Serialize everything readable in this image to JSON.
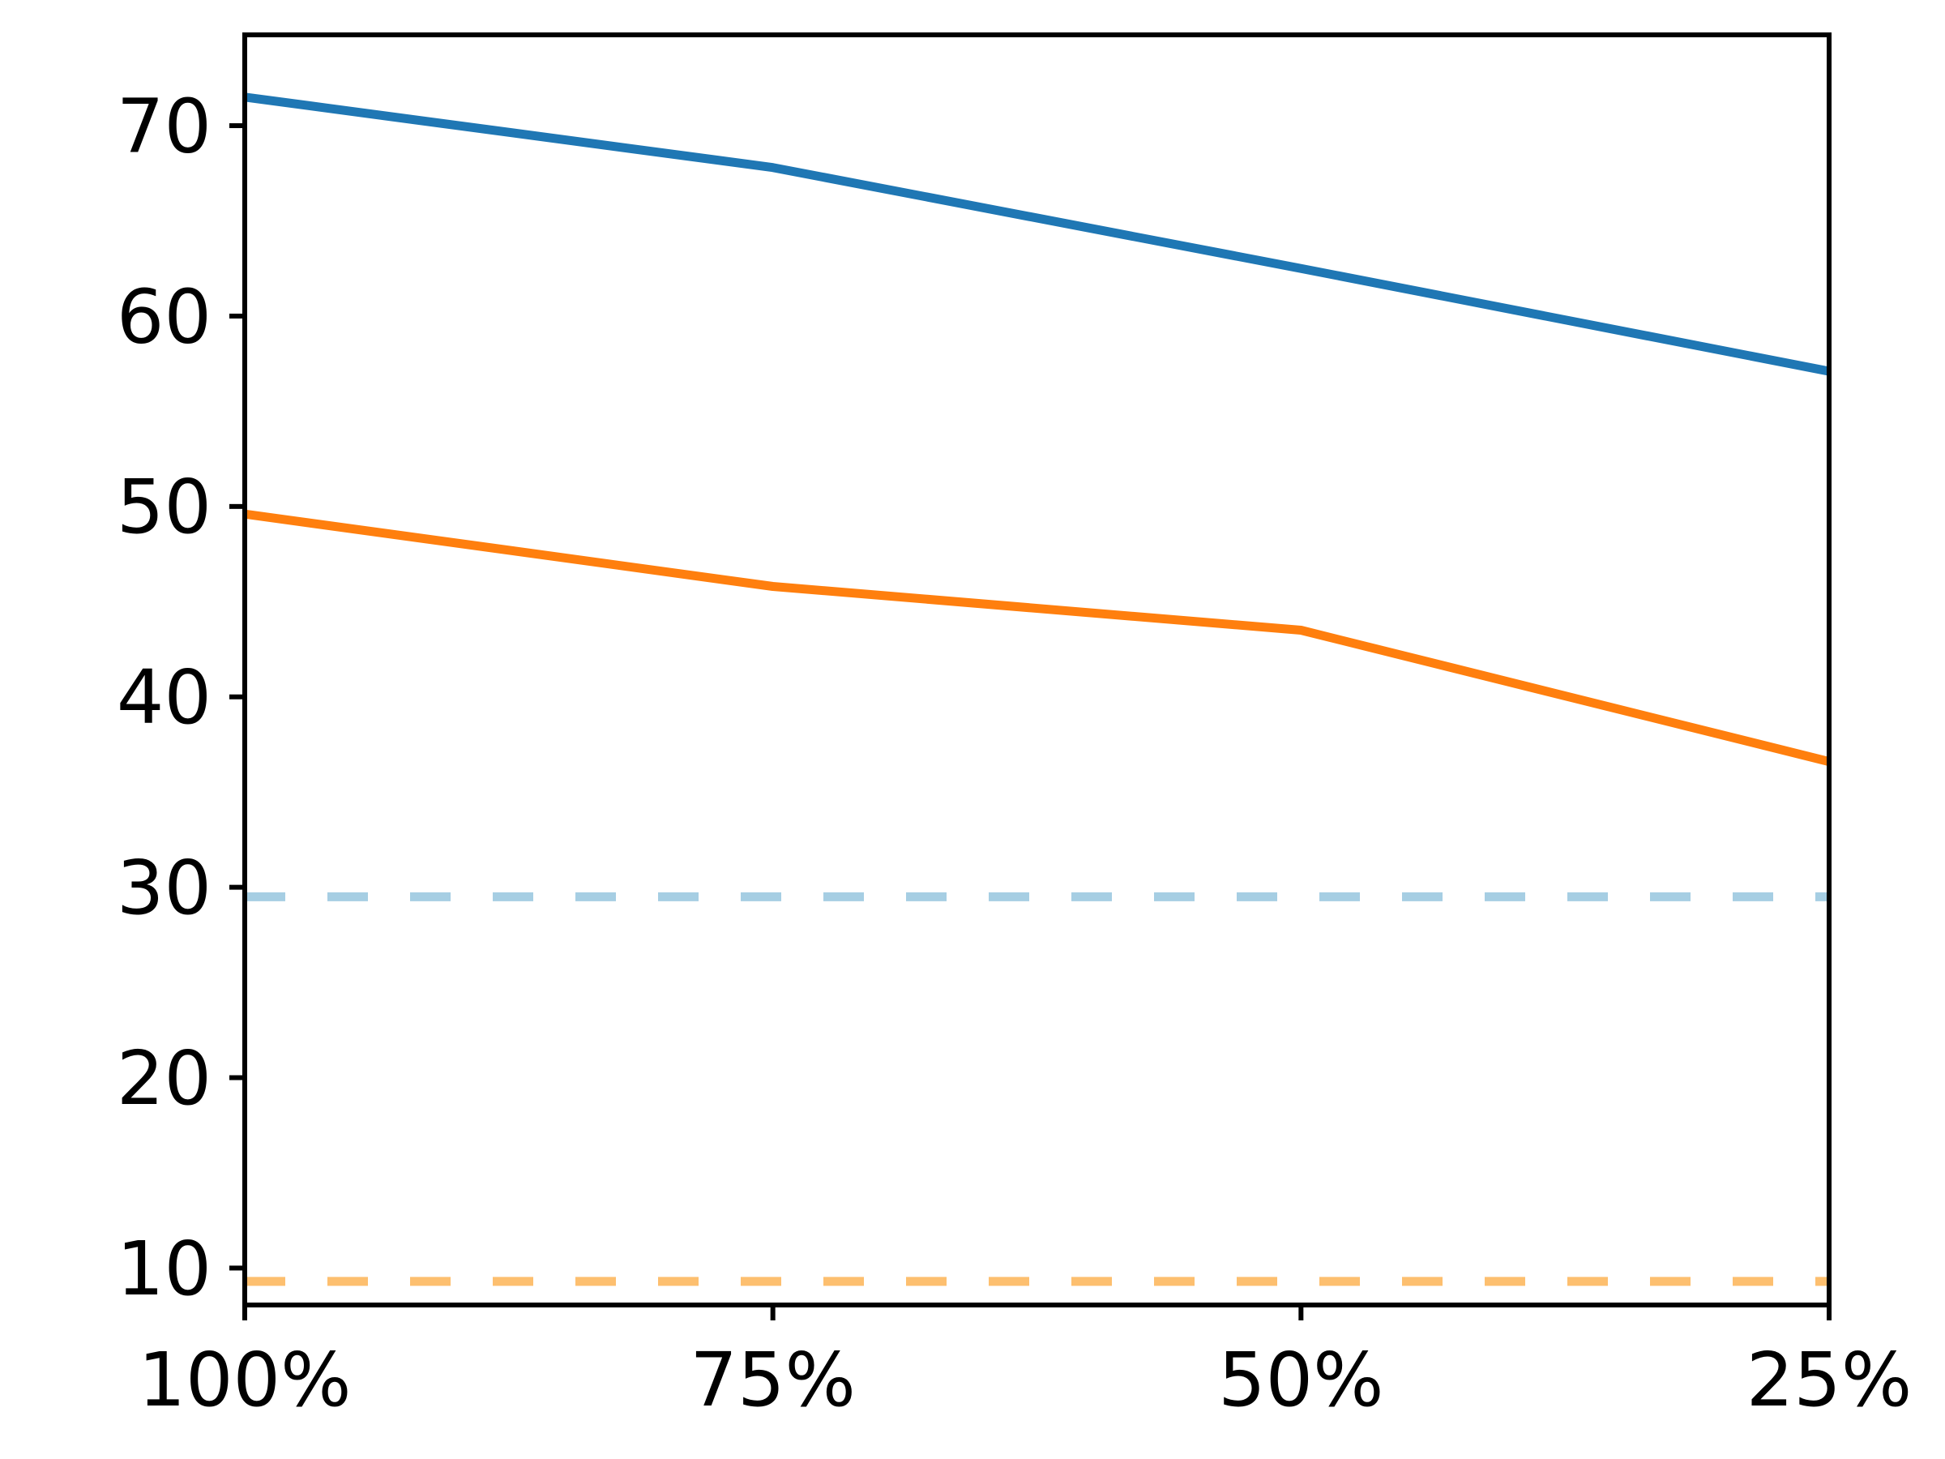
{
  "chart_data": {
    "type": "line",
    "title": "",
    "xlabel": "",
    "ylabel": "",
    "grid": false,
    "legend": null,
    "background_color": "#ffffff",
    "spine_color": "#000000",
    "categories": [
      "100%",
      "75%",
      "50%",
      "25%"
    ],
    "yticks": [
      10,
      20,
      30,
      40,
      50,
      60,
      70
    ],
    "ytick_labels": [
      "10",
      "20",
      "30",
      "40",
      "50",
      "60",
      "70"
    ],
    "ylim": [
      8.06,
      74.77
    ],
    "series": [
      {
        "id": "blue-solid-line",
        "color": "#1f77b4",
        "style": "solid",
        "values": [
          71.5,
          67.8,
          62.5,
          57.1
        ]
      },
      {
        "id": "orange-solid-line",
        "color": "#ff7f0e",
        "style": "solid",
        "values": [
          49.6,
          45.8,
          43.5,
          36.6
        ]
      },
      {
        "id": "lightblue-dashed-hline",
        "color": "#a6cee3",
        "style": "dashed",
        "values": [
          29.5,
          29.5,
          29.5,
          29.5
        ]
      },
      {
        "id": "lightorange-dashed-hline",
        "color": "#fdbf6f",
        "style": "dashed",
        "values": [
          9.3,
          9.3,
          9.3,
          9.3
        ]
      }
    ]
  }
}
